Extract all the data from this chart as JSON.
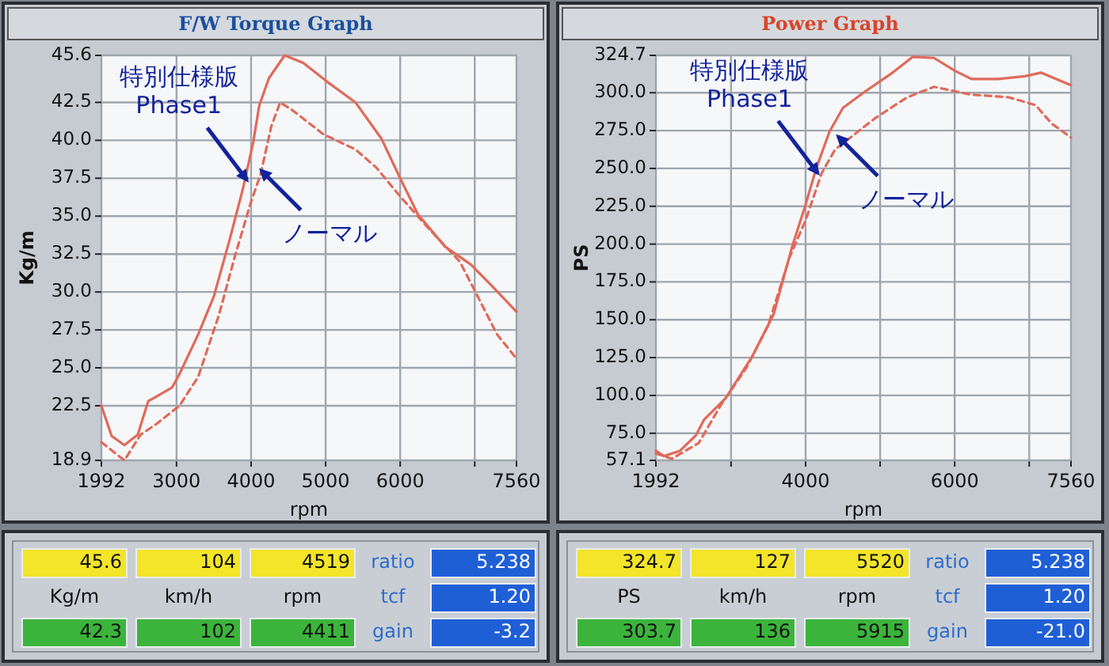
{
  "chart_data": [
    {
      "type": "line",
      "title": "F/W Torque Graph",
      "xlabel": "rpm",
      "ylabel": "Kg/m",
      "xlim": [
        1992,
        7560
      ],
      "ylim": [
        18.9,
        45.6
      ],
      "xticks": [
        1992,
        3000,
        4000,
        5000,
        6000,
        {
          "value": 7000,
          "label": null
        },
        7560
      ],
      "yticks": [
        45.6,
        42.5,
        {
          "value": 40,
          "label": "40.0"
        },
        37.5,
        {
          "value": 35,
          "label": "35.0"
        },
        32.5,
        {
          "value": 30,
          "label": "30.0"
        },
        27.5,
        {
          "value": 25,
          "label": "25.0"
        },
        22.5,
        18.9
      ],
      "grid": true,
      "series": [
        {
          "color": "#e06a5a",
          "line_style": "solid",
          "x": [
            1992,
            2130,
            2300,
            2480,
            2620,
            2730,
            2940,
            3040,
            3290,
            3500,
            3710,
            3890,
            4030,
            4110,
            4240,
            4450,
            4700,
            5010,
            5400,
            5750,
            6000,
            6240,
            6600,
            6950,
            7230,
            7560
          ],
          "values": [
            22.5,
            20.5,
            19.9,
            20.6,
            22.8,
            23.1,
            23.7,
            24.6,
            27.2,
            29.7,
            33.4,
            36.8,
            39.9,
            42.3,
            44.1,
            45.6,
            45.1,
            43.9,
            42.5,
            40.1,
            37.5,
            35.1,
            33.0,
            31.8,
            30.4,
            28.7
          ]
        },
        {
          "color": "#e06a5a",
          "line_style": "dashed",
          "x": [
            1992,
            2300,
            2520,
            2730,
            3040,
            3290,
            3570,
            3780,
            3990,
            4130,
            4270,
            4390,
            4550,
            4970,
            5400,
            5680,
            6000,
            6380,
            6800,
            7020,
            7300,
            7560
          ],
          "values": [
            20.1,
            18.9,
            20.6,
            21.3,
            22.5,
            24.4,
            28.5,
            32.3,
            35.8,
            37.8,
            40.9,
            42.5,
            42.0,
            40.4,
            39.4,
            38.2,
            36.3,
            34.2,
            32.0,
            29.9,
            27.2,
            25.6
          ]
        }
      ],
      "annotations": [
        {
          "text": "特別仕様版\nPhase1",
          "x": 3880,
          "y": 37.7
        },
        {
          "text": "ノーマル",
          "x": 4200,
          "y": 37.7
        }
      ]
    },
    {
      "type": "other",
      "annotations": [
        "45.6",
        "104",
        "4519",
        "ratio",
        "5.238",
        "Kg/m",
        "km/h",
        "rpm",
        "tcf",
        "1.20",
        "42.3",
        "102",
        "4411",
        "gain",
        "-3.2"
      ]
    },
    {
      "type": "line",
      "title": "Power Graph",
      "xlabel": "rpm",
      "ylabel": "PS",
      "xlim": [
        1992,
        7560
      ],
      "ylim": [
        57.1,
        324.7
      ],
      "xticks": [
        1992,
        {
          "value": 3000,
          "label": null
        },
        4000,
        {
          "value": 5000,
          "label": null
        },
        6000,
        {
          "value": 7000,
          "label": null
        },
        7560
      ],
      "yticks": [
        324.7,
        {
          "value": 300,
          "label": "300.0"
        },
        {
          "value": 275,
          "label": "275.0"
        },
        {
          "value": 250,
          "label": "250.0"
        },
        {
          "value": 225,
          "label": "225.0"
        },
        {
          "value": 200,
          "label": "200.0"
        },
        {
          "value": 175,
          "label": "175.0"
        },
        {
          "value": 150,
          "label": "150.0"
        },
        {
          "value": 125,
          "label": "125.0"
        },
        {
          "value": 100,
          "label": "100.0"
        },
        {
          "value": 75,
          "label": "75.0"
        },
        57.1
      ],
      "grid": true,
      "series": [
        {
          "color": "#e06a5a",
          "line_style": "solid",
          "x": [
            1992,
            2100,
            2315,
            2530,
            2640,
            2925,
            3283,
            3570,
            3820,
            4000,
            4144,
            4323,
            4503,
            4790,
            5148,
            5435,
            5722,
            6010,
            6225,
            6583,
            6942,
            7157,
            7560
          ],
          "values": [
            63.4,
            59.9,
            63.4,
            73.7,
            84.1,
            98.0,
            125.7,
            153.4,
            198.4,
            226.1,
            250.3,
            274.5,
            290.1,
            300.5,
            312.6,
            323.7,
            323.0,
            314.3,
            309.1,
            309.1,
            310.9,
            313.3,
            305.0
          ]
        },
        {
          "color": "#e06a5a",
          "line_style": "dashed",
          "x": [
            1992,
            2207,
            2566,
            2853,
            3212,
            3499,
            3786,
            4000,
            4215,
            4395,
            4574,
            4933,
            5363,
            5722,
            6225,
            6727,
            7085,
            7300,
            7560
          ],
          "values": [
            61.6,
            58.2,
            68.5,
            92.8,
            118.7,
            146.4,
            191.4,
            215.7,
            246.8,
            262.4,
            269.3,
            283.2,
            297.0,
            303.9,
            298.7,
            297.0,
            291.8,
            279.7,
            270.4
          ]
        }
      ],
      "annotations": [
        {
          "text": "特別仕様版\nPhase1",
          "x": 4100,
          "y": 250
        },
        {
          "text": "ノーマル",
          "x": 4500,
          "y": 268
        }
      ]
    },
    {
      "type": "other",
      "annotations": [
        "324.7",
        "127",
        "5520",
        "ratio",
        "5.238",
        "PS",
        "km/h",
        "rpm",
        "tcf",
        "1.20",
        "303.7",
        "136",
        "5915",
        "gain",
        "-21.0"
      ]
    }
  ]
}
